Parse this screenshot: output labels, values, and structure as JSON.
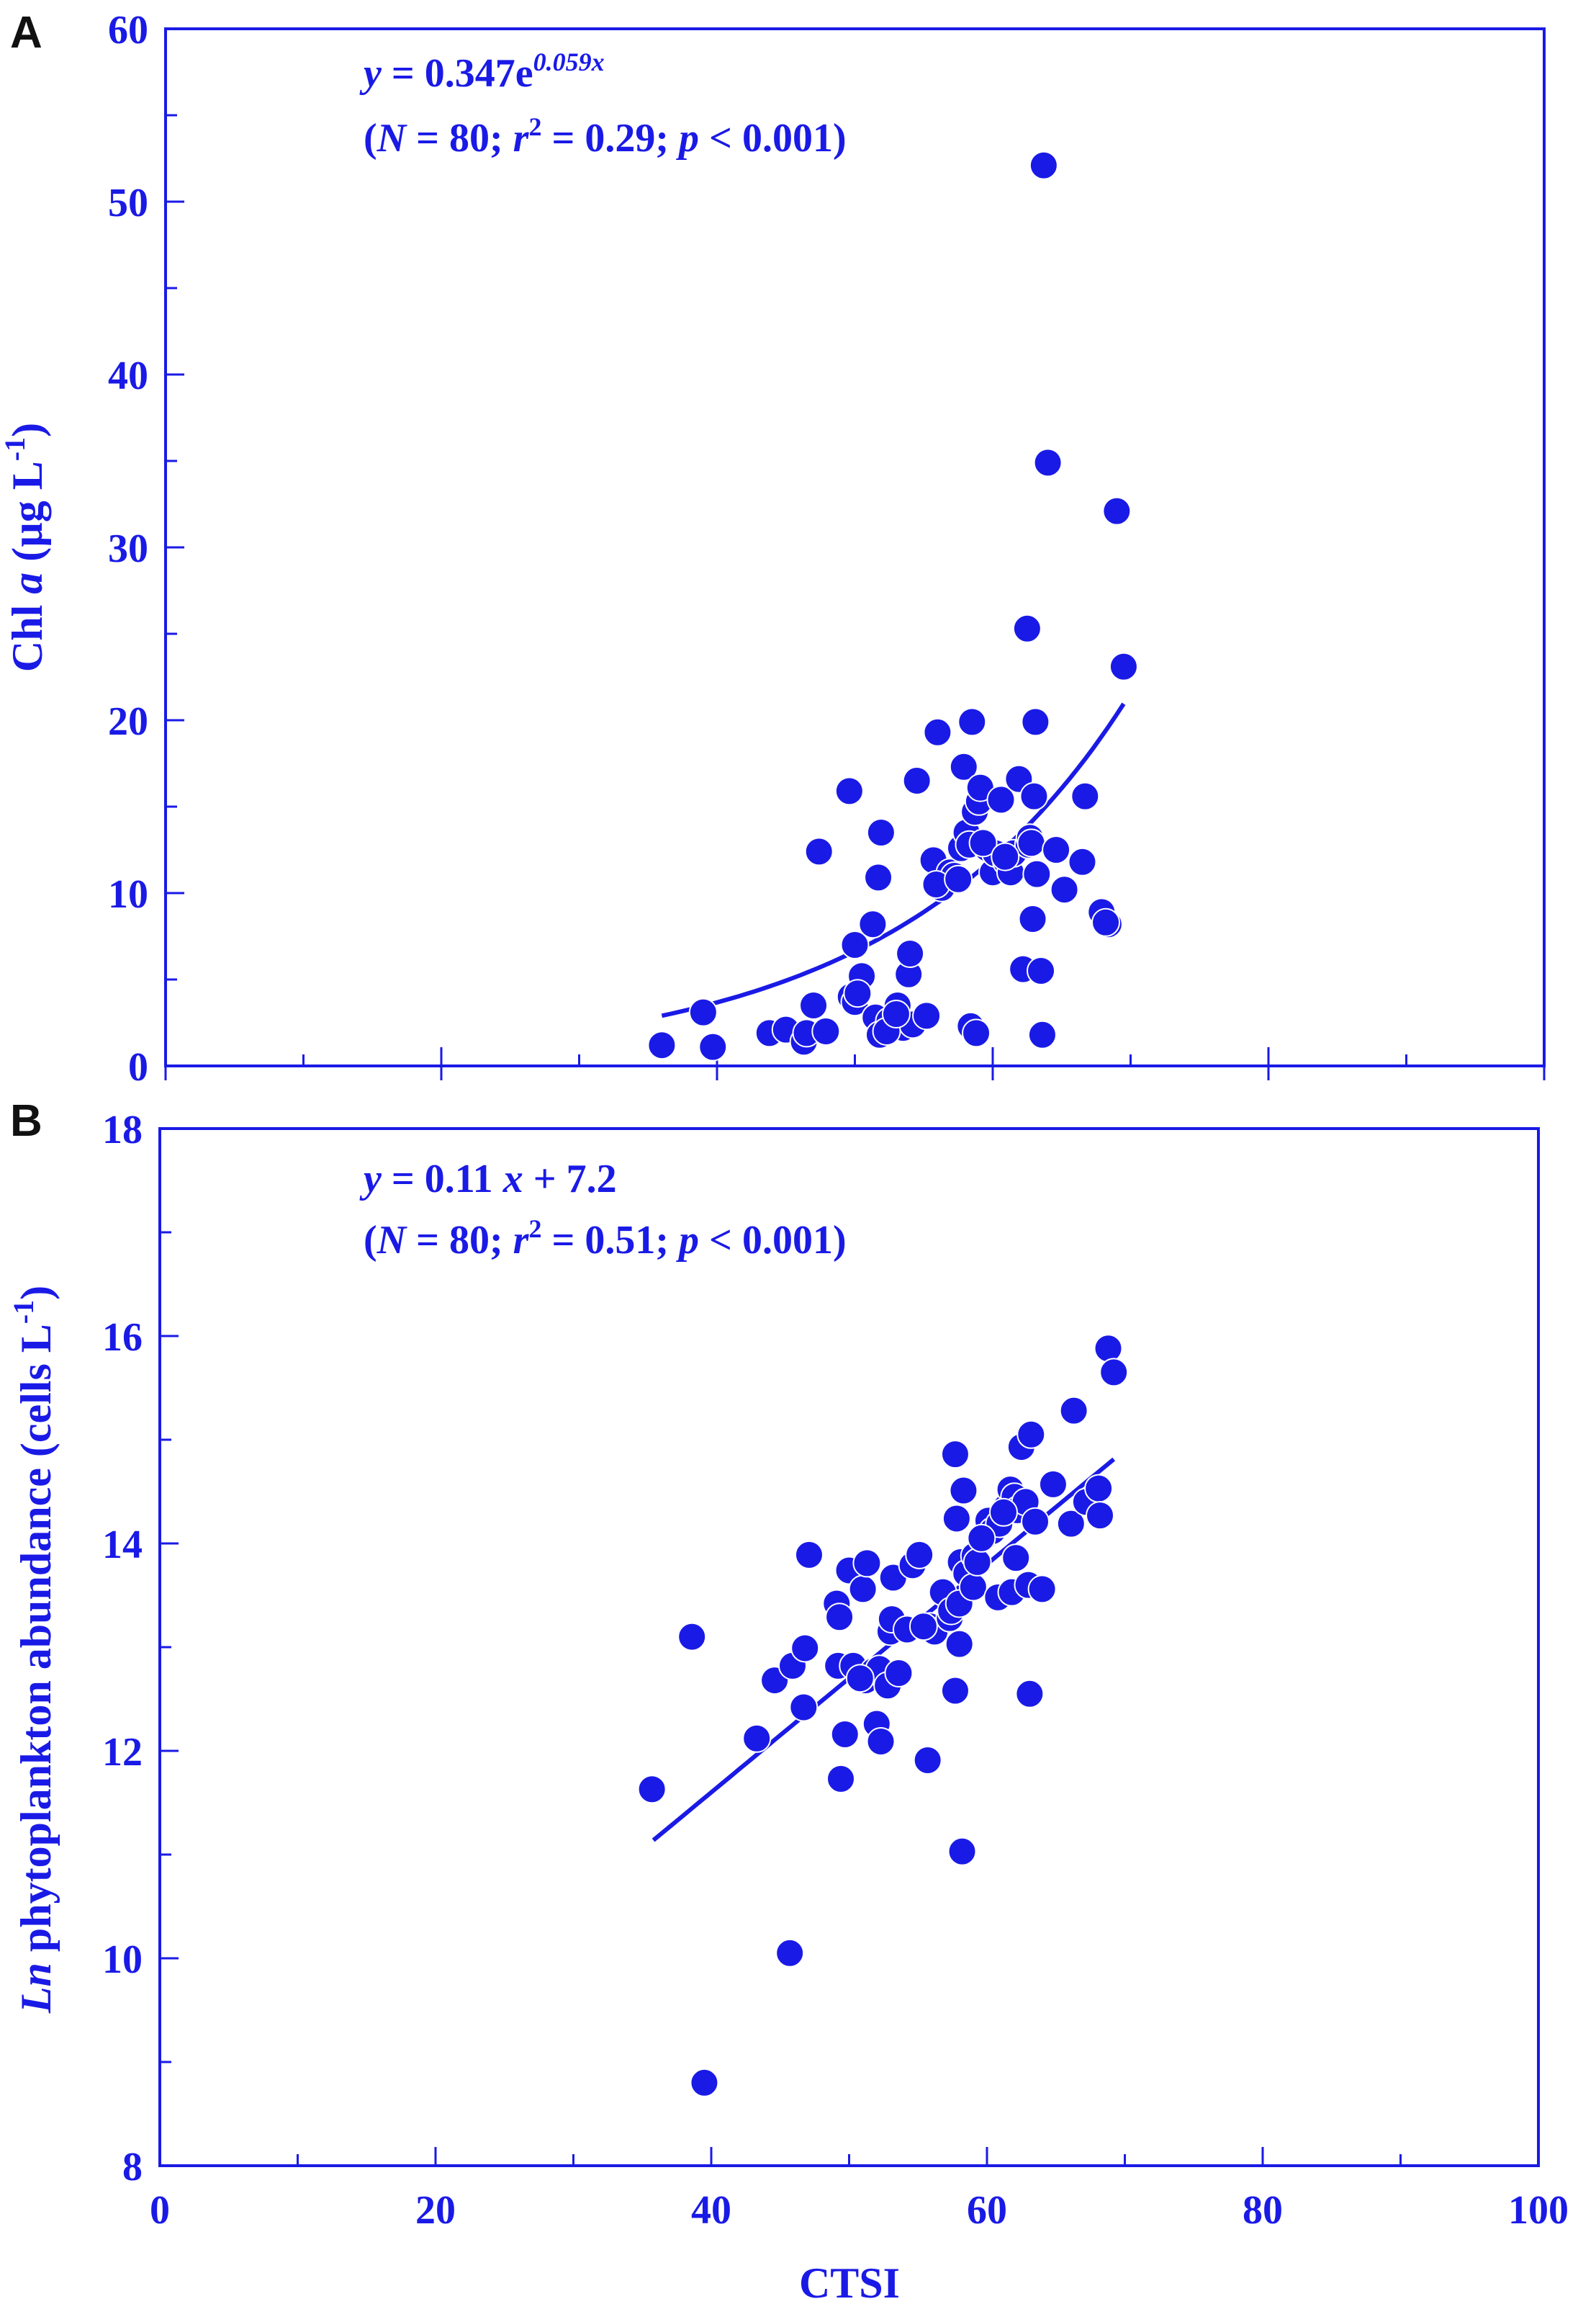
{
  "colors": {
    "ink": "#1a1ae6",
    "black": "#111111"
  },
  "chart_data": [
    {
      "panel": "A",
      "type": "scatter",
      "ylabel_main": "Chl ",
      "ylabel_italic": "a",
      "ylabel_unit": " (µg L",
      "ylabel_sup": "-1",
      "ylabel_close": ")",
      "xlim": [
        0,
        100
      ],
      "ylim": [
        0,
        60
      ],
      "yticks": [
        0,
        10,
        20,
        30,
        40,
        50,
        60
      ],
      "eq_y": "y",
      "eq_mid": " = 0.347e",
      "eq_sup": "0.059x",
      "stats_open": "(",
      "stats_N": "N",
      "stats_n_val": " = 80; ",
      "stats_r": "r",
      "stats_r_sup": "2",
      "stats_r_val": " = 0.29; ",
      "stats_p": "p",
      "stats_p_val": " < 0.001)",
      "fit": {
        "kind": "exponential",
        "a": 0.347,
        "b": 0.059,
        "x_range": [
          36,
          69.5
        ]
      },
      "points": [
        [
          36,
          1.2
        ],
        [
          39,
          3.1
        ],
        [
          39.7,
          1.1
        ],
        [
          43.8,
          1.9
        ],
        [
          45,
          2.1
        ],
        [
          46.3,
          1.4
        ],
        [
          46.5,
          1.9
        ],
        [
          47,
          3.5
        ],
        [
          47.4,
          12.4
        ],
        [
          47.9,
          2
        ],
        [
          49.6,
          15.9
        ],
        [
          49.7,
          4
        ],
        [
          50,
          3.7
        ],
        [
          50,
          7
        ],
        [
          50.5,
          5.2
        ],
        [
          51.3,
          8.2
        ],
        [
          51.5,
          2.8
        ],
        [
          51.7,
          10.9
        ],
        [
          51.8,
          1.8
        ],
        [
          51.9,
          13.5
        ],
        [
          52.5,
          2.6
        ],
        [
          53.1,
          3.5
        ],
        [
          53.5,
          2.2
        ],
        [
          53.9,
          5.3
        ],
        [
          54,
          6.5
        ],
        [
          54.2,
          2.4
        ],
        [
          54.5,
          16.5
        ],
        [
          55.2,
          2.9
        ],
        [
          55.7,
          11.9
        ],
        [
          56,
          19.3
        ],
        [
          56.3,
          10.3
        ],
        [
          56.9,
          11.2
        ],
        [
          57.2,
          11
        ],
        [
          57.7,
          12.6
        ],
        [
          57.9,
          17.3
        ],
        [
          58.1,
          13.5
        ],
        [
          58.3,
          12.8
        ],
        [
          58.4,
          2.3
        ],
        [
          58.5,
          19.9
        ],
        [
          58.7,
          14.7
        ],
        [
          58.8,
          1.9
        ],
        [
          59,
          15.3
        ],
        [
          59.1,
          16.1
        ],
        [
          59.6,
          12.6
        ],
        [
          60,
          11.2
        ],
        [
          60.2,
          12.3
        ],
        [
          60.6,
          15.4
        ],
        [
          61,
          11.8
        ],
        [
          61.3,
          11.2
        ],
        [
          61.5,
          12.3
        ],
        [
          61.9,
          16.6
        ],
        [
          62.2,
          5.6
        ],
        [
          62.5,
          25.3
        ],
        [
          62.6,
          12.8
        ],
        [
          62.7,
          13.2
        ],
        [
          62.8,
          12.9
        ],
        [
          62.9,
          8.5
        ],
        [
          63,
          15.6
        ],
        [
          63.1,
          19.9
        ],
        [
          63.2,
          11.1
        ],
        [
          63.5,
          5.5
        ],
        [
          63.6,
          1.8
        ],
        [
          63.7,
          52.1
        ],
        [
          64,
          34.9
        ],
        [
          64.6,
          12.5
        ],
        [
          65.2,
          10.2
        ],
        [
          66.5,
          11.8
        ],
        [
          66.7,
          15.6
        ],
        [
          67.9,
          8.9
        ],
        [
          68.4,
          8.2
        ],
        [
          69,
          32.1
        ],
        [
          69.5,
          23.1
        ],
        [
          50.2,
          4.2
        ],
        [
          52.3,
          2.0
        ],
        [
          53.0,
          3.0
        ],
        [
          55.9,
          10.5
        ],
        [
          57.5,
          10.8
        ],
        [
          59.3,
          12.9
        ],
        [
          60.9,
          12.1
        ],
        [
          68.2,
          8.3
        ]
      ]
    },
    {
      "panel": "B",
      "type": "scatter",
      "ylabel_italic": "Ln",
      "ylabel_main": " phytoplankton abundance (cells L",
      "ylabel_sup": "-1",
      "ylabel_close": ")",
      "xlabel": "CTSI",
      "xlim": [
        0,
        100
      ],
      "ylim": [
        8,
        18
      ],
      "xticks": [
        0,
        20,
        40,
        60,
        80,
        100
      ],
      "yticks": [
        8,
        10,
        12,
        14,
        16,
        18
      ],
      "eq_y": "y",
      "eq_mid": " = 0.11 ",
      "eq_x": "x",
      "eq_end": " + 7.2",
      "stats_open": "(",
      "stats_N": "N",
      "stats_n_val": " = 80; ",
      "stats_r": "r",
      "stats_r_sup": "2",
      "stats_r_val": " = 0.51; ",
      "stats_p": "p",
      "stats_p_val": " < 0.001)",
      "fit": {
        "kind": "linear",
        "slope": 0.11,
        "intercept": 7.2,
        "x_range": [
          35.8,
          69.2
        ]
      },
      "points": [
        [
          35.7,
          11.63
        ],
        [
          38.6,
          13.1
        ],
        [
          39.5,
          8.8
        ],
        [
          43.3,
          12.12
        ],
        [
          44.6,
          12.68
        ],
        [
          45.7,
          10.05
        ],
        [
          45.9,
          12.82
        ],
        [
          46.7,
          12.42
        ],
        [
          46.8,
          12.99
        ],
        [
          47.1,
          13.89
        ],
        [
          49.1,
          13.42
        ],
        [
          49.2,
          12.82
        ],
        [
          49.3,
          13.29
        ],
        [
          49.4,
          11.73
        ],
        [
          49.7,
          12.16
        ],
        [
          50,
          13.74
        ],
        [
          50.3,
          12.82
        ],
        [
          51,
          13.56
        ],
        [
          51.2,
          12.68
        ],
        [
          51.3,
          13.81
        ],
        [
          51.8,
          12.77
        ],
        [
          52,
          12.26
        ],
        [
          52.2,
          12.79
        ],
        [
          52.3,
          12.09
        ],
        [
          52.8,
          12.63
        ],
        [
          53,
          13.15
        ],
        [
          53.1,
          13.27
        ],
        [
          53.2,
          13.67
        ],
        [
          53.6,
          12.75
        ],
        [
          54.2,
          13.17
        ],
        [
          54.6,
          13.79
        ],
        [
          55.1,
          13.89
        ],
        [
          55.7,
          11.91
        ],
        [
          55.9,
          13.2
        ],
        [
          56.2,
          13.15
        ],
        [
          56.8,
          13.53
        ],
        [
          57.3,
          13.28
        ],
        [
          57.4,
          13.35
        ],
        [
          57.7,
          12.58
        ],
        [
          57.7,
          14.86
        ],
        [
          57.8,
          14.24
        ],
        [
          58,
          13.42
        ],
        [
          58,
          13.03
        ],
        [
          58.1,
          13.82
        ],
        [
          58.2,
          11.03
        ],
        [
          58.5,
          13.71
        ],
        [
          58.3,
          14.51
        ],
        [
          59,
          13.58
        ],
        [
          59.1,
          13.88
        ],
        [
          59.3,
          13.82
        ],
        [
          59.8,
          14.06
        ],
        [
          60.1,
          14.22
        ],
        [
          60.4,
          14.12
        ],
        [
          60.8,
          13.48
        ],
        [
          60.9,
          14.19
        ],
        [
          61.4,
          14.35
        ],
        [
          61.7,
          14.52
        ],
        [
          61.8,
          13.53
        ],
        [
          62,
          14.45
        ],
        [
          62.1,
          13.86
        ],
        [
          62.2,
          14.32
        ],
        [
          62.5,
          14.93
        ],
        [
          62.8,
          14.4
        ],
        [
          63,
          13.6
        ],
        [
          63.1,
          12.55
        ],
        [
          63.2,
          15.05
        ],
        [
          63.5,
          14.21
        ],
        [
          64,
          13.56
        ],
        [
          64.8,
          14.57
        ],
        [
          66.1,
          14.19
        ],
        [
          66.3,
          15.28
        ],
        [
          67.2,
          14.4
        ],
        [
          68.1,
          14.53
        ],
        [
          68.2,
          14.27
        ],
        [
          68.8,
          15.88
        ],
        [
          69.2,
          15.65
        ],
        [
          50.8,
          12.7
        ],
        [
          55.4,
          13.2
        ],
        [
          59.6,
          14.05
        ],
        [
          61.2,
          14.3
        ]
      ]
    }
  ]
}
